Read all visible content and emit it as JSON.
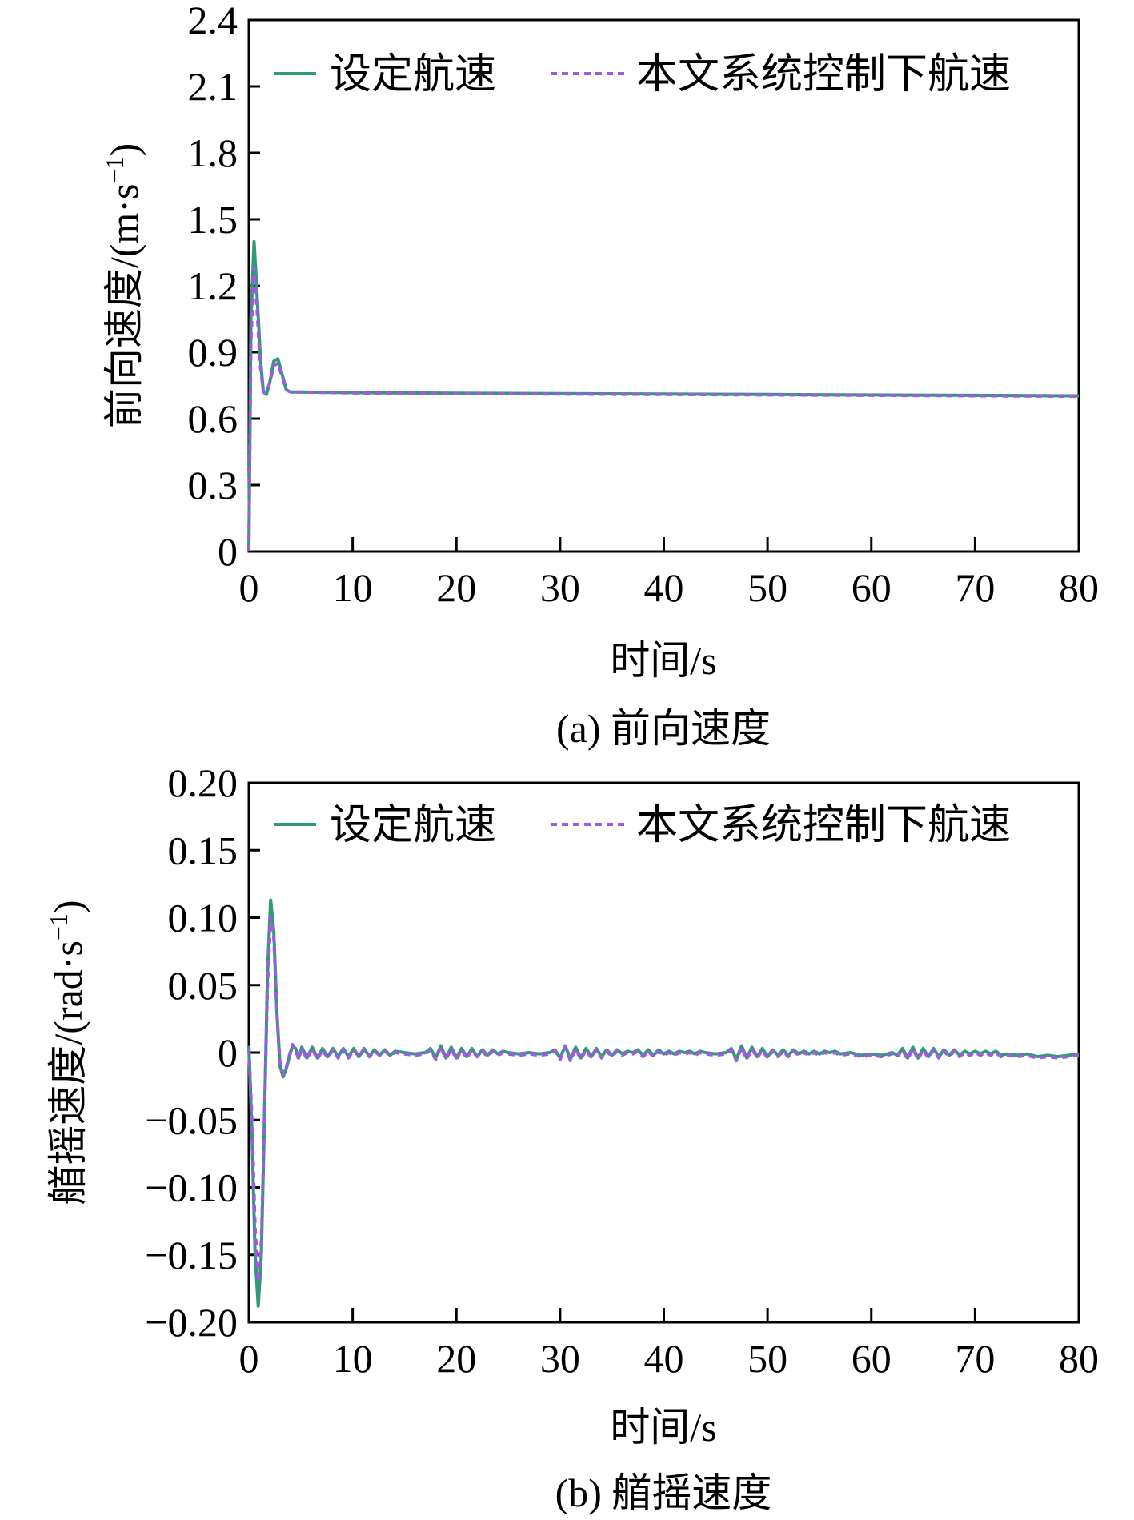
{
  "chart_data": [
    {
      "type": "line",
      "caption": "(a) 前向速度",
      "xlabel": "时间/s",
      "ylabel_text": "前向速度/(m·s",
      "ylabel_exp": "−1",
      "ylabel_close": ")",
      "xlim": [
        0,
        80
      ],
      "ylim": [
        0,
        2.4
      ],
      "xticks": [
        "0",
        "10",
        "20",
        "30",
        "40",
        "50",
        "60",
        "70",
        "80"
      ],
      "yticks": [
        "0",
        "0.3",
        "0.6",
        "0.9",
        "1.2",
        "1.5",
        "1.8",
        "2.1",
        "2.4"
      ],
      "legend_position": "top",
      "grid": false,
      "colors": {
        "set": "#2e9a7a",
        "ctrl": "#a05ae0"
      },
      "series": [
        {
          "name": "设定航速",
          "x": [
            0,
            0.2,
            0.5,
            0.8,
            1.1,
            1.4,
            1.7,
            2.0,
            2.4,
            2.8,
            3.2,
            3.6,
            4.0,
            5,
            10,
            20,
            30,
            40,
            50,
            60,
            70,
            80
          ],
          "y": [
            0,
            1.05,
            1.4,
            1.15,
            0.88,
            0.72,
            0.71,
            0.76,
            0.86,
            0.87,
            0.8,
            0.73,
            0.72,
            0.72,
            0.718,
            0.715,
            0.713,
            0.711,
            0.709,
            0.707,
            0.705,
            0.703
          ]
        },
        {
          "name": "本文系统控制下航速",
          "x": [
            0,
            0.2,
            0.5,
            0.8,
            1.1,
            1.4,
            1.7,
            2.0,
            2.4,
            2.8,
            3.2,
            3.6,
            4.0,
            5,
            10,
            20,
            30,
            40,
            50,
            60,
            70,
            80
          ],
          "y": [
            0,
            0.95,
            1.28,
            1.08,
            0.84,
            0.72,
            0.72,
            0.76,
            0.84,
            0.85,
            0.79,
            0.73,
            0.72,
            0.72,
            0.716,
            0.713,
            0.711,
            0.709,
            0.707,
            0.705,
            0.703,
            0.701
          ]
        }
      ]
    },
    {
      "type": "line",
      "caption": "(b) 艏摇速度",
      "xlabel": "时间/s",
      "ylabel_text": "艏摇速度/(rad·s",
      "ylabel_exp": "−1",
      "ylabel_close": ")",
      "xlim": [
        0,
        80
      ],
      "ylim": [
        -0.2,
        0.2
      ],
      "xticks": [
        "0",
        "10",
        "20",
        "30",
        "40",
        "50",
        "60",
        "70",
        "80"
      ],
      "yticks": [
        "−0.20",
        "−0.15",
        "−0.10",
        "−0.05",
        "0",
        "0.05",
        "0.10",
        "0.15",
        "0.20"
      ],
      "legend_position": "top",
      "grid": false,
      "colors": {
        "set": "#2e9a7a",
        "ctrl": "#a05ae0"
      },
      "series": [
        {
          "name": "设定航速",
          "x": [
            0,
            0.3,
            0.6,
            0.9,
            1.2,
            1.5,
            1.8,
            2.1,
            2.4,
            2.7,
            3.0,
            3.3,
            3.6,
            3.9,
            4.2,
            4.5,
            4.8,
            5.1,
            5.6,
            6.1,
            6.6,
            7.1,
            7.6,
            8.1,
            8.6,
            9.1,
            9.6,
            10.1,
            10.6,
            11.1,
            11.6,
            12.1,
            12.6,
            13.1,
            13.6,
            14.1,
            15,
            16,
            17,
            17.5,
            18,
            18.5,
            19,
            19.5,
            20,
            20.5,
            21,
            21.5,
            22,
            22.5,
            23,
            23.5,
            24,
            24.5,
            25,
            26,
            27,
            28,
            29,
            29.5,
            30,
            30.5,
            31,
            31.5,
            32,
            32.5,
            33,
            33.5,
            34,
            34.5,
            35,
            35.5,
            36,
            36.5,
            37,
            37.5,
            38,
            38.5,
            39,
            39.5,
            40,
            40.5,
            41,
            41.5,
            42,
            42.5,
            43,
            43.5,
            44,
            45,
            46,
            46.5,
            47,
            47.5,
            48,
            48.5,
            49,
            49.5,
            50,
            50.5,
            51,
            51.5,
            52,
            52.5,
            53,
            53.5,
            54,
            54.5,
            55,
            55.5,
            56,
            56.5,
            57,
            58,
            59,
            60,
            61,
            62,
            62.5,
            63,
            63.5,
            64,
            64.5,
            65,
            65.5,
            66,
            66.5,
            67,
            67.5,
            68,
            68.5,
            69,
            69.5,
            70,
            70.5,
            71,
            71.5,
            72,
            72.5,
            73,
            74,
            75,
            76,
            77,
            78,
            79,
            80
          ],
          "y": [
            0.005,
            -0.06,
            -0.15,
            -0.188,
            -0.15,
            -0.05,
            0.06,
            0.113,
            0.09,
            0.03,
            -0.01,
            -0.018,
            -0.012,
            -0.003,
            0.005,
            0.003,
            -0.004,
            0.004,
            -0.004,
            0.004,
            -0.004,
            0.003,
            -0.003,
            0.003,
            -0.003,
            0.003,
            -0.003,
            0.003,
            -0.003,
            0.003,
            -0.003,
            0.002,
            -0.002,
            0.002,
            -0.002,
            0.001,
            0.0,
            -0.001,
            0.0,
            0.003,
            -0.004,
            0.005,
            -0.004,
            0.004,
            -0.004,
            0.003,
            -0.003,
            0.003,
            -0.003,
            0.002,
            -0.002,
            0.002,
            -0.001,
            0.001,
            0.0,
            -0.001,
            0.0,
            -0.001,
            0.0,
            0.002,
            -0.004,
            0.005,
            -0.005,
            0.004,
            -0.004,
            0.003,
            -0.003,
            0.003,
            -0.003,
            0.002,
            -0.002,
            0.002,
            -0.001,
            0.001,
            0.0,
            0.002,
            -0.002,
            0.002,
            -0.002,
            0.002,
            -0.001,
            0.001,
            -0.001,
            0.001,
            0.0,
            0.001,
            -0.001,
            0.001,
            0.0,
            -0.001,
            0.0,
            0.003,
            -0.005,
            0.005,
            -0.004,
            0.004,
            -0.003,
            0.003,
            -0.003,
            0.002,
            -0.002,
            0.002,
            -0.002,
            0.002,
            -0.001,
            0.001,
            -0.001,
            0.001,
            -0.001,
            0.001,
            0.0,
            0.001,
            -0.001,
            0.0,
            -0.002,
            -0.001,
            -0.002,
            0.0,
            -0.002,
            0.003,
            -0.004,
            0.004,
            -0.004,
            0.003,
            -0.003,
            0.003,
            -0.003,
            0.002,
            -0.002,
            0.002,
            -0.002,
            0.001,
            -0.001,
            0.001,
            -0.001,
            0.001,
            -0.001,
            0.001,
            -0.002,
            -0.001,
            -0.002,
            -0.001,
            -0.003,
            -0.002,
            -0.003,
            -0.002,
            -0.001
          ],
          "note_unused": ""
        },
        {
          "name": "本文系统控制下航速",
          "x": [
            0,
            0.3,
            0.6,
            0.9,
            1.2,
            1.5,
            1.8,
            2.1,
            2.4,
            2.7,
            3.0,
            3.3,
            3.6,
            3.9,
            4.2,
            4.5,
            4.8,
            5.1,
            5.6,
            6.1,
            6.6,
            7.1,
            7.6,
            8.1,
            8.6,
            9.1,
            9.6,
            10.1,
            10.6,
            11.1,
            11.6,
            12.1,
            12.6,
            13.1,
            13.6,
            14.1,
            15,
            16,
            17,
            17.5,
            18,
            18.5,
            19,
            19.5,
            20,
            20.5,
            21,
            21.5,
            22,
            22.5,
            23,
            23.5,
            24,
            24.5,
            25,
            26,
            27,
            28,
            29,
            29.5,
            30,
            30.5,
            31,
            31.5,
            32,
            32.5,
            33,
            33.5,
            34,
            34.5,
            35,
            35.5,
            36,
            36.5,
            37,
            37.5,
            38,
            38.5,
            39,
            39.5,
            40,
            40.5,
            41,
            41.5,
            42,
            42.5,
            43,
            43.5,
            44,
            45,
            46,
            46.5,
            47,
            47.5,
            48,
            48.5,
            49,
            49.5,
            50,
            50.5,
            51,
            51.5,
            52,
            52.5,
            53,
            53.5,
            54,
            54.5,
            55,
            55.5,
            56,
            56.5,
            57,
            58,
            59,
            60,
            61,
            62,
            62.5,
            63,
            63.5,
            64,
            64.5,
            65,
            65.5,
            66,
            66.5,
            67,
            67.5,
            68,
            68.5,
            69,
            69.5,
            70,
            70.5,
            71,
            71.5,
            72,
            72.5,
            73,
            74,
            75,
            76,
            77,
            78,
            79,
            80
          ],
          "y": [
            0.003,
            -0.05,
            -0.13,
            -0.17,
            -0.14,
            -0.05,
            0.05,
            0.1,
            0.085,
            0.03,
            -0.008,
            -0.016,
            -0.011,
            -0.002,
            0.006,
            0.002,
            -0.005,
            0.003,
            -0.005,
            0.003,
            -0.005,
            0.002,
            -0.004,
            0.002,
            -0.004,
            0.002,
            -0.004,
            0.002,
            -0.003,
            0.002,
            -0.003,
            0.001,
            -0.002,
            0.001,
            -0.002,
            0.0,
            -0.001,
            -0.002,
            -0.001,
            0.002,
            -0.005,
            0.004,
            -0.005,
            0.003,
            -0.005,
            0.002,
            -0.004,
            0.002,
            -0.003,
            0.001,
            -0.003,
            0.001,
            -0.002,
            0.0,
            -0.001,
            -0.002,
            -0.001,
            -0.002,
            -0.001,
            0.001,
            -0.005,
            0.004,
            -0.006,
            0.003,
            -0.005,
            0.002,
            -0.004,
            0.002,
            -0.004,
            0.001,
            -0.003,
            0.001,
            -0.002,
            0.0,
            -0.001,
            0.001,
            -0.003,
            0.001,
            -0.003,
            0.001,
            -0.002,
            0.0,
            -0.002,
            0.0,
            -0.001,
            0.0,
            -0.002,
            0.0,
            -0.001,
            -0.002,
            -0.001,
            0.002,
            -0.006,
            0.004,
            -0.005,
            0.003,
            -0.004,
            0.002,
            -0.004,
            0.001,
            -0.003,
            0.001,
            -0.003,
            0.001,
            -0.002,
            0.0,
            -0.002,
            0.0,
            -0.002,
            0.0,
            -0.001,
            0.0,
            -0.002,
            -0.001,
            -0.003,
            -0.002,
            -0.003,
            -0.001,
            -0.003,
            0.002,
            -0.005,
            0.003,
            -0.005,
            0.002,
            -0.004,
            0.002,
            -0.004,
            0.001,
            -0.003,
            0.001,
            -0.003,
            0.0,
            -0.002,
            0.0,
            -0.002,
            0.0,
            -0.002,
            0.0,
            -0.003,
            -0.002,
            -0.003,
            -0.002,
            -0.004,
            -0.003,
            -0.004,
            -0.003,
            -0.002
          ]
        }
      ]
    }
  ]
}
